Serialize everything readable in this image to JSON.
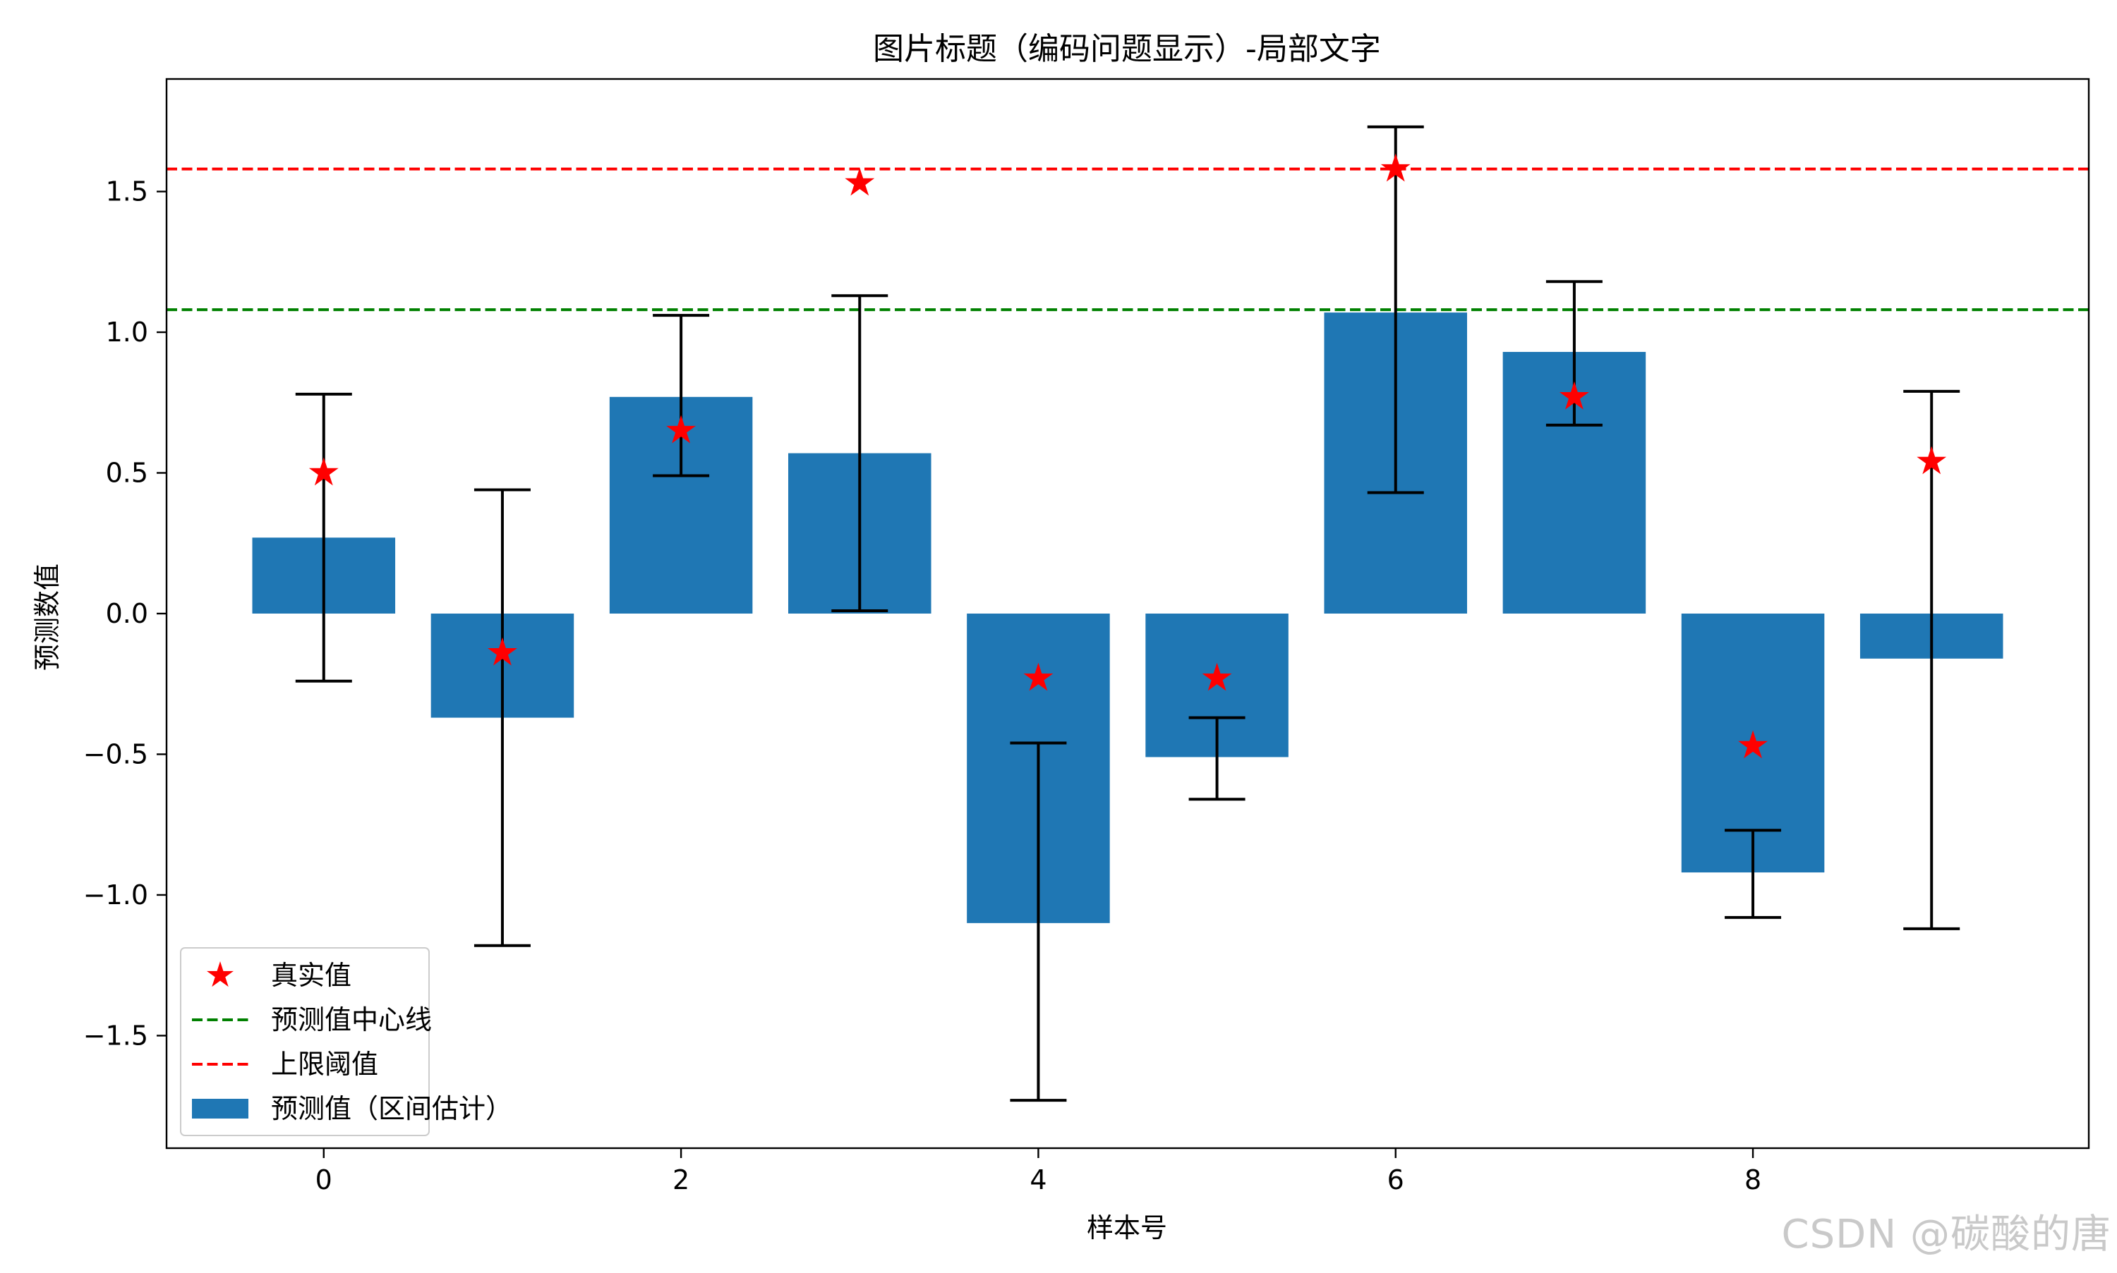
{
  "chart_data": {
    "type": "bar",
    "title": "图片标题（编码问题显示）-局部文字",
    "xlabel": "样本号",
    "ylabel": "预测数值",
    "xlim": [
      -0.88,
      9.88
    ],
    "ylim": [
      -1.9,
      1.9
    ],
    "xticks": [
      0,
      2,
      4,
      6,
      8
    ],
    "xtick_labels": [
      "0",
      "2",
      "4",
      "6",
      "8"
    ],
    "yticks": [
      -1.5,
      -1.0,
      -0.5,
      0.0,
      0.5,
      1.0,
      1.5
    ],
    "ytick_labels": [
      "−1.5",
      "−1.0",
      "−0.5",
      "0.0",
      "0.5",
      "1.0",
      "1.5"
    ],
    "grid": false,
    "legend_position": "lower-left",
    "categories": [
      0,
      1,
      2,
      3,
      4,
      5,
      6,
      7,
      8,
      9
    ],
    "bars": {
      "name": "预测值（区间估计）",
      "color": "#1f77b4",
      "values": [
        0.27,
        -0.37,
        0.77,
        0.57,
        -1.1,
        -0.51,
        1.07,
        0.93,
        -0.92,
        -0.16
      ]
    },
    "error_bars": {
      "color": "#000000",
      "lower": [
        -0.24,
        -1.18,
        0.49,
        0.01,
        -1.73,
        -0.66,
        0.43,
        0.67,
        -1.08,
        -1.12
      ],
      "upper": [
        0.78,
        0.44,
        1.06,
        1.13,
        -0.46,
        -0.37,
        1.73,
        1.18,
        -0.77,
        0.79
      ]
    },
    "points": {
      "name": "真实值",
      "marker": "star",
      "color": "#ff0000",
      "values": [
        0.5,
        -0.14,
        0.65,
        1.53,
        -0.23,
        -0.23,
        1.58,
        0.77,
        -0.47,
        0.54
      ]
    },
    "hlines": [
      {
        "name": "预测值中心线",
        "y": 1.08,
        "color": "#008000",
        "style": "dashed"
      },
      {
        "name": "上限阈值",
        "y": 1.58,
        "color": "#ff0000",
        "style": "dashed"
      }
    ],
    "legend_entries": [
      "真实值",
      "预测值中心线",
      "上限阈值",
      "预测值（区间估计）"
    ]
  },
  "watermark": "CSDN @碳酸的唐"
}
